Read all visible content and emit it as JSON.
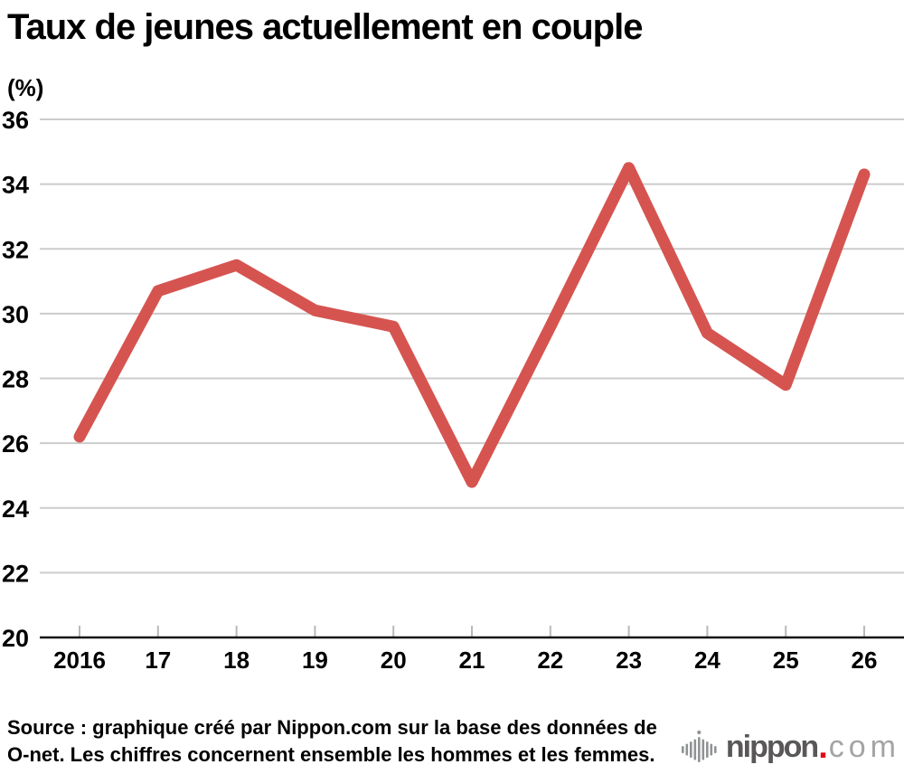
{
  "title": "Taux de jeunes actuellement en couple",
  "unit_label": "(%)",
  "source": {
    "line1": "Source : graphique créé par Nippon.com sur la base des données de",
    "line2": "O-net. Les chiffres concernent ensemble les hommes et les femmes."
  },
  "logo": {
    "name": "nippon",
    "dot": ".",
    "tld": "com"
  },
  "colors": {
    "line": "#d65450",
    "grid": "#cccccc",
    "axis": "#111111",
    "tick": "#b9b9b9",
    "label": "#000000",
    "logo_dark": "#595757",
    "logo_light": "#a3a4a4",
    "logo_red": "#e60012",
    "logo_icon": "#909394"
  },
  "chart_data": {
    "type": "line",
    "title": "Taux de jeunes actuellement en couple",
    "ylabel": "(%)",
    "xlabel": "",
    "categories": [
      "2016",
      "17",
      "18",
      "19",
      "20",
      "21",
      "22",
      "23",
      "24",
      "25",
      "26"
    ],
    "series": [
      {
        "name": "Taux de jeunes actuellement en couple (%)",
        "values": [
          26.2,
          30.7,
          31.5,
          30.1,
          29.6,
          24.8,
          29.6,
          34.5,
          29.4,
          27.8,
          34.3
        ]
      }
    ],
    "ylim": [
      20,
      36
    ],
    "ytick_step": 2,
    "grid": "horizontal",
    "legend": "none"
  }
}
